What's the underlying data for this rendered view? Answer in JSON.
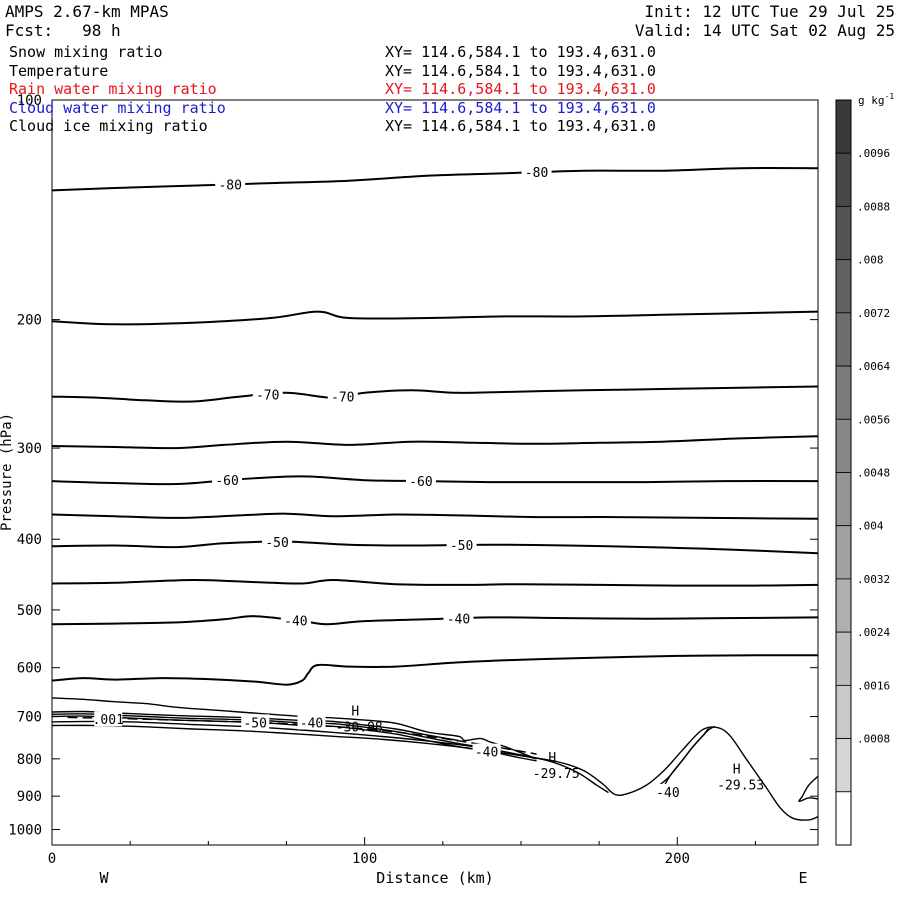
{
  "header": {
    "model": "AMPS 2.67-km MPAS",
    "forecast": "Fcst:   98 h",
    "init": "Init: 12 UTC Tue 29 Jul 25",
    "valid": "Valid: 14 UTC Sat 02 Aug 25"
  },
  "legend": [
    {
      "label": "Snow mixing ratio",
      "xy": "XY= 114.6,584.1 to 193.4,631.0",
      "color": "#000000"
    },
    {
      "label": "Temperature",
      "xy": "XY= 114.6,584.1 to 193.4,631.0",
      "color": "#000000"
    },
    {
      "label": "Rain water mixing ratio",
      "xy": "XY= 114.6,584.1 to 193.4,631.0",
      "color": "#e8141e"
    },
    {
      "label": "Cloud water mixing ratio",
      "xy": "XY= 114.6,584.1 to 193.4,631.0",
      "color": "#1c1ccc"
    },
    {
      "label": "Cloud ice mixing ratio",
      "xy": "XY= 114.6,584.1 to 193.4,631.0",
      "color": "#000000"
    }
  ],
  "colorbar": {
    "unit": "g kg",
    "unit_exp": "-1",
    "labels": [
      ".0096",
      ".0088",
      ".008",
      ".0072",
      ".0064",
      ".0056",
      ".0048",
      ".004",
      ".0032",
      ".0024",
      ".0016",
      ".0008"
    ],
    "colors": [
      "#3a3a3a",
      "#474747",
      "#545454",
      "#616161",
      "#6e6e6e",
      "#7b7b7b",
      "#888888",
      "#959595",
      "#a2a2a2",
      "#afafaf",
      "#bcbcbc",
      "#c9c9c9",
      "#d6d6d6",
      "#ffffff"
    ]
  },
  "chart_data": {
    "type": "contour",
    "xlabel": "Distance (km)",
    "ylabel": "Pressure (hPa)",
    "xlim": [
      0,
      245
    ],
    "ylim": [
      1050,
      100
    ],
    "y_log": true,
    "x_ticks": [
      "0",
      "100",
      "200"
    ],
    "y_ticks": [
      "100",
      "200",
      "300",
      "400",
      "500",
      "600",
      "700",
      "800",
      "900",
      "1000"
    ],
    "x_tick_values": [
      0,
      100,
      200
    ],
    "y_tick_values": [
      100,
      200,
      300,
      400,
      500,
      600,
      700,
      800,
      900,
      1000
    ],
    "direction_labels": {
      "left": "W",
      "right": "E"
    },
    "isotherms": [
      {
        "level": -80,
        "label": "-80",
        "x": [
          0,
          20,
          45,
          70,
          95,
          120,
          145,
          170,
          195,
          220,
          245
        ],
        "y": [
          133,
          132,
          131,
          130,
          129,
          127,
          126,
          125,
          125,
          124,
          124
        ],
        "label_x": [
          57,
          155
        ]
      },
      {
        "level": -75,
        "label": "",
        "x": [
          0,
          20,
          45,
          70,
          85,
          95,
          120,
          145,
          170,
          195,
          220,
          245
        ],
        "y": [
          201,
          203,
          202,
          199,
          195,
          199,
          199,
          198,
          198,
          197,
          196,
          195
        ],
        "label_x": []
      },
      {
        "level": -70,
        "label": "-70",
        "x": [
          0,
          15,
          30,
          45,
          60,
          75,
          90,
          100,
          115,
          130,
          150,
          170,
          195,
          220,
          245
        ],
        "y": [
          255,
          256,
          258,
          259,
          255,
          252,
          256,
          252,
          250,
          252,
          251,
          250,
          249,
          248,
          247
        ],
        "label_x": [
          69,
          93
        ]
      },
      {
        "level": -65,
        "label": "",
        "x": [
          0,
          20,
          40,
          55,
          75,
          95,
          115,
          135,
          155,
          175,
          195,
          220,
          245
        ],
        "y": [
          298,
          299,
          300,
          297,
          294,
          297,
          294,
          295,
          296,
          295,
          294,
          291,
          289
        ],
        "label_x": []
      },
      {
        "level": -60,
        "label": "-60",
        "x": [
          0,
          20,
          40,
          60,
          80,
          100,
          120,
          140,
          165,
          190,
          215,
          245
        ],
        "y": [
          333,
          335,
          336,
          331,
          328,
          332,
          333,
          334,
          334,
          334,
          333,
          333
        ],
        "label_x": [
          56,
          118
        ]
      },
      {
        "level": -55,
        "label": "",
        "x": [
          0,
          20,
          40,
          60,
          75,
          90,
          110,
          130,
          155,
          180,
          210,
          245
        ],
        "y": [
          370,
          372,
          374,
          371,
          369,
          372,
          370,
          371,
          373,
          373,
          374,
          375
        ],
        "label_x": []
      },
      {
        "level": -50,
        "label": "-50",
        "x": [
          0,
          20,
          40,
          55,
          75,
          95,
          115,
          140,
          165,
          190,
          215,
          245
        ],
        "y": [
          409,
          408,
          410,
          405,
          403,
          407,
          408,
          407,
          408,
          410,
          413,
          418
        ],
        "label_x": [
          72,
          131
        ]
      },
      {
        "level": -45,
        "label": "",
        "x": [
          0,
          20,
          45,
          65,
          80,
          90,
          110,
          130,
          150,
          175,
          200,
          225,
          245
        ],
        "y": [
          460,
          459,
          455,
          458,
          460,
          455,
          461,
          462,
          461,
          462,
          463,
          463,
          462
        ],
        "label_x": []
      },
      {
        "level": -40,
        "label": "-40",
        "x": [
          0,
          20,
          40,
          55,
          65,
          80,
          88,
          100,
          120,
          140,
          165,
          190,
          215,
          245
        ],
        "y": [
          523,
          522,
          520,
          515,
          510,
          518,
          523,
          518,
          515,
          512,
          513,
          514,
          513,
          512
        ],
        "label_x": [
          78,
          130
        ]
      },
      {
        "level": -35,
        "label": "",
        "x": [
          0,
          10,
          20,
          35,
          50,
          65,
          75,
          80,
          82,
          85,
          95,
          110,
          130,
          150,
          170,
          200,
          225,
          245
        ],
        "y": [
          625,
          620,
          623,
          620,
          622,
          627,
          633,
          625,
          610,
          595,
          598,
          598,
          590,
          585,
          582,
          578,
          577,
          577
        ],
        "label_x": []
      }
    ],
    "shapes": [
      {
        "type": "solid",
        "x": [
          0,
          15,
          30,
          45,
          60,
          75,
          90,
          105,
          120,
          135,
          150,
          162,
          170,
          176,
          180,
          184,
          190,
          196,
          202,
          208,
          213,
          217,
          222,
          228,
          233,
          237,
          242,
          245
        ],
        "y": [
          720,
          720,
          723,
          728,
          732,
          738,
          745,
          752,
          762,
          775,
          792,
          808,
          830,
          865,
          895,
          893,
          870,
          828,
          775,
          730,
          725,
          745,
          800,
          870,
          935,
          965,
          970,
          960
        ]
      },
      {
        "type": "solid",
        "x": [
          0,
          15,
          30,
          45,
          60,
          75,
          90,
          105,
          120,
          135,
          150,
          160,
          168,
          174,
          178
        ],
        "y": [
          712,
          711,
          713,
          718,
          722,
          728,
          736,
          745,
          756,
          770,
          790,
          808,
          835,
          868,
          890
        ]
      },
      {
        "type": "solid",
        "x": [
          0,
          10,
          20,
          30,
          40,
          50,
          60,
          70,
          80,
          90,
          100,
          110,
          120,
          130,
          140,
          150,
          155
        ],
        "y": [
          700,
          699,
          702,
          705,
          708,
          710,
          712,
          715,
          720,
          722,
          730,
          740,
          755,
          770,
          782,
          798,
          805
        ]
      },
      {
        "type": "solid",
        "x": [
          0,
          10,
          20,
          30,
          40,
          50,
          60,
          70,
          80,
          90,
          100,
          110,
          120,
          130,
          140,
          150,
          155
        ],
        "y": [
          695,
          694,
          697,
          700,
          703,
          705,
          707,
          710,
          714,
          716,
          724,
          734,
          748,
          762,
          775,
          791,
          800
        ]
      },
      {
        "type": "solid",
        "x": [
          0,
          10,
          20,
          30,
          40,
          50,
          60,
          70,
          80,
          90,
          100,
          110,
          120,
          130
        ],
        "y": [
          690,
          689,
          692,
          695,
          698,
          700,
          702,
          705,
          709,
          711,
          719,
          728,
          742,
          755
        ]
      },
      {
        "type": "solid",
        "x": [
          0,
          10,
          20,
          30,
          40,
          50,
          60,
          70,
          80,
          90,
          100,
          110,
          120,
          130,
          132,
          137,
          140,
          145,
          150,
          155
        ],
        "y": [
          660,
          663,
          668,
          672,
          680,
          685,
          690,
          695,
          700,
          703,
          708,
          715,
          735,
          745,
          755,
          750,
          758,
          770,
          785,
          800
        ]
      },
      {
        "type": "solid",
        "x": [
          196,
          198,
          202,
          205,
          208,
          210,
          212
        ],
        "y": [
          868,
          840,
          800,
          770,
          745,
          730,
          722
        ]
      },
      {
        "type": "solid",
        "x": [
          195,
          193,
          197,
          201,
          205,
          208,
          210
        ],
        "y": [
          895,
          880,
          850,
          810,
          770,
          745,
          727
        ]
      },
      {
        "type": "solid",
        "x": [
          245,
          242,
          240,
          239,
          242,
          245
        ],
        "y": [
          845,
          870,
          900,
          915,
          905,
          908
        ]
      },
      {
        "type": "dashed",
        "x": [
          5,
          20,
          40,
          60,
          75,
          85,
          95,
          110,
          125,
          140,
          155
        ],
        "y": [
          702,
          704,
          708,
          712,
          716,
          720,
          725,
          735,
          750,
          768,
          788
        ]
      }
    ],
    "annotations": [
      {
        "type": "H",
        "label": "H",
        "value": "-30.98",
        "x": 97,
        "y": 707
      },
      {
        "type": "H",
        "label": "H",
        "value": "-29.75",
        "x": 160,
        "y": 818
      },
      {
        "type": "H",
        "label": "H",
        "value": "-29.53",
        "x": 219,
        "y": 848
      },
      {
        "type": "contour_label",
        "label": ".001",
        "x": 18,
        "y": 706
      },
      {
        "type": "contour_label",
        "label": "-50",
        "x": 65,
        "y": 713
      },
      {
        "type": "contour_label",
        "label": "-40",
        "x": 83,
        "y": 713
      },
      {
        "type": "contour_label",
        "label": "-40",
        "x": 139,
        "y": 782
      },
      {
        "type": "contour_label",
        "label": "-40",
        "x": 197,
        "y": 888
      }
    ]
  }
}
